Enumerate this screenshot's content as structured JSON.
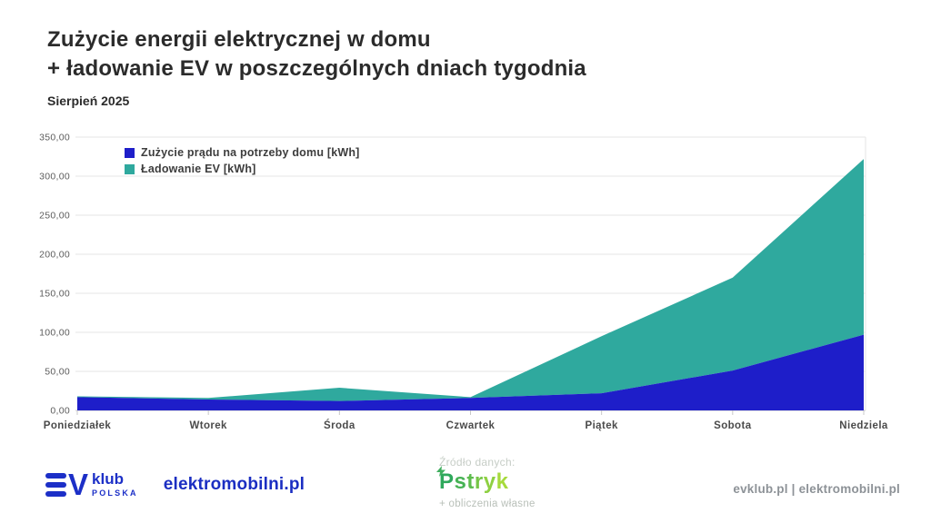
{
  "header": {
    "title_line1": "Zużycie energii elektrycznej w domu",
    "title_line2": "+ ładowanie EV w poszczególnych dniach tygodnia",
    "subtitle": "Sierpień 2025"
  },
  "chart_data": {
    "type": "area",
    "stacked": true,
    "title": "Zużycie energii elektrycznej w domu + ładowanie EV w poszczególnych dniach tygodnia",
    "subtitle": "Sierpień 2025",
    "categories": [
      "Poniedziałek",
      "Wtorek",
      "Środa",
      "Czwartek",
      "Piątek",
      "Sobota",
      "Niedziela"
    ],
    "series": [
      {
        "name": "Zużycie prądu na potrzeby domu [kWh]",
        "color": "#1e1ec9",
        "values": [
          17,
          14,
          12,
          16,
          22,
          51,
          97
        ]
      },
      {
        "name": "Ładowanie EV [kWh]",
        "color": "#2fa99e",
        "values": [
          1,
          2,
          17,
          1,
          73,
          119,
          225
        ]
      }
    ],
    "ylim": [
      0,
      350
    ],
    "ytick_step": 50,
    "ytick_labels": [
      "0,00",
      "50,00",
      "100,00",
      "150,00",
      "200,00",
      "250,00",
      "300,00",
      "350,00"
    ],
    "grid": true,
    "legend_position": "top-left-inside",
    "gridline_color": "#e6e6e6",
    "baseline_color": "#c8c8c8",
    "x_label_color": "#4a4a4a",
    "y_label_color": "#5c5c5c"
  },
  "footer": {
    "evklub": {
      "v": "V",
      "klub": "klub",
      "polska": "POLSKA"
    },
    "elektromobilni": "elektromobilni.pl",
    "source": {
      "label": "Źródło danych:",
      "brand": "Pstryk",
      "brand_colors": [
        "#2fa85c",
        "#46b254",
        "#5dbc4d",
        "#76c647",
        "#8ed042",
        "#a6da3c"
      ],
      "note": "+ obliczenia własne"
    },
    "sites": "evklub.pl | elektromobilni.pl"
  }
}
